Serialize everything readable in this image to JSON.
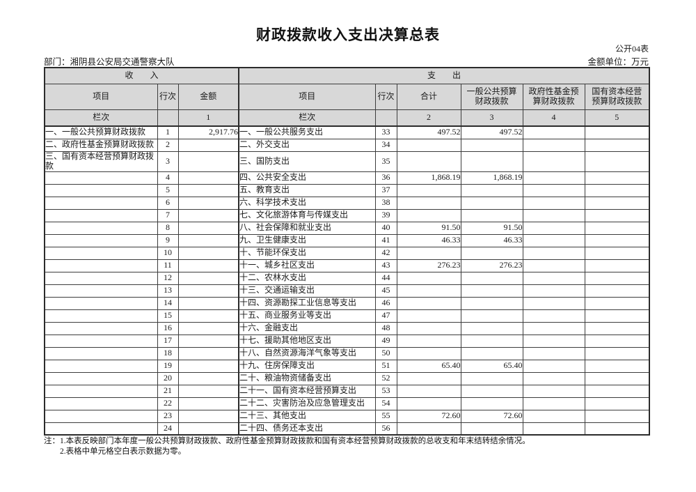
{
  "page": {
    "title": "财政拨款收入支出决算总表",
    "form_code": "公开04表",
    "department": "部门：湘阴县公安局交通警察大队",
    "unit": "金额单位：万元"
  },
  "table": {
    "sections": {
      "income": "收　　入",
      "expense": "支　　出"
    },
    "columns": [
      "项目",
      "行次",
      "金额",
      "项目",
      "行次",
      "合计",
      "一般公共预算\n财政拨款",
      "政府性基金预\n算财政拨款",
      "国有资本经营\n预算财政拨款"
    ],
    "index_row": [
      "栏次",
      "",
      "1",
      "栏次",
      "",
      "2",
      "3",
      "4",
      "5"
    ],
    "rows": [
      [
        "一、一般公共预算财政拨款",
        "1",
        "2,917.76",
        "一、一般公共服务支出",
        "33",
        "497.52",
        "497.52",
        "",
        ""
      ],
      [
        "二、政府性基金预算财政拨款",
        "2",
        "",
        "二、外交支出",
        "34",
        "",
        "",
        "",
        ""
      ],
      [
        "三、国有资本经营预算财政拨款",
        "3",
        "",
        "三、国防支出",
        "35",
        "",
        "",
        "",
        ""
      ],
      [
        "",
        "4",
        "",
        "四、公共安全支出",
        "36",
        "1,868.19",
        "1,868.19",
        "",
        ""
      ],
      [
        "",
        "5",
        "",
        "五、教育支出",
        "37",
        "",
        "",
        "",
        ""
      ],
      [
        "",
        "6",
        "",
        "六、科学技术支出",
        "38",
        "",
        "",
        "",
        ""
      ],
      [
        "",
        "7",
        "",
        "七、文化旅游体育与传媒支出",
        "39",
        "",
        "",
        "",
        ""
      ],
      [
        "",
        "8",
        "",
        "八、社会保障和就业支出",
        "40",
        "91.50",
        "91.50",
        "",
        ""
      ],
      [
        "",
        "9",
        "",
        "九、卫生健康支出",
        "41",
        "46.33",
        "46.33",
        "",
        ""
      ],
      [
        "",
        "10",
        "",
        "十、节能环保支出",
        "42",
        "",
        "",
        "",
        ""
      ],
      [
        "",
        "11",
        "",
        "十一、城乡社区支出",
        "43",
        "276.23",
        "276.23",
        "",
        ""
      ],
      [
        "",
        "12",
        "",
        "十二、农林水支出",
        "44",
        "",
        "",
        "",
        ""
      ],
      [
        "",
        "13",
        "",
        "十三、交通运输支出",
        "45",
        "",
        "",
        "",
        ""
      ],
      [
        "",
        "14",
        "",
        "十四、资源勘探工业信息等支出",
        "46",
        "",
        "",
        "",
        ""
      ],
      [
        "",
        "15",
        "",
        "十五、商业服务业等支出",
        "47",
        "",
        "",
        "",
        ""
      ],
      [
        "",
        "16",
        "",
        "十六、金融支出",
        "48",
        "",
        "",
        "",
        ""
      ],
      [
        "",
        "17",
        "",
        "十七、援助其他地区支出",
        "49",
        "",
        "",
        "",
        ""
      ],
      [
        "",
        "18",
        "",
        "十八、自然资源海洋气象等支出",
        "50",
        "",
        "",
        "",
        ""
      ],
      [
        "",
        "19",
        "",
        "十九、住房保障支出",
        "51",
        "65.40",
        "65.40",
        "",
        ""
      ],
      [
        "",
        "20",
        "",
        "二十、粮油物资储备支出",
        "52",
        "",
        "",
        "",
        ""
      ],
      [
        "",
        "21",
        "",
        "二十一、国有资本经营预算支出",
        "53",
        "",
        "",
        "",
        ""
      ],
      [
        "",
        "22",
        "",
        "二十二、灾害防治及应急管理支出",
        "54",
        "",
        "",
        "",
        ""
      ],
      [
        "",
        "23",
        "",
        "二十三、其他支出",
        "55",
        "72.60",
        "72.60",
        "",
        ""
      ],
      [
        "",
        "24",
        "",
        "二十四、债务还本支出",
        "56",
        "",
        "",
        "",
        ""
      ]
    ]
  },
  "notes": [
    "注：1.本表反映部门本年度一般公共预算财政拨款、政府性基金预算财政拨款和国有资本经营预算财政拨款的总收支和年末结转结余情况。",
    "2.表格中单元格空白表示数据为零。"
  ],
  "colors": {
    "header_bg": "#d8d8d8",
    "border": "#3c3c3c",
    "text": "#1a1a1a"
  }
}
